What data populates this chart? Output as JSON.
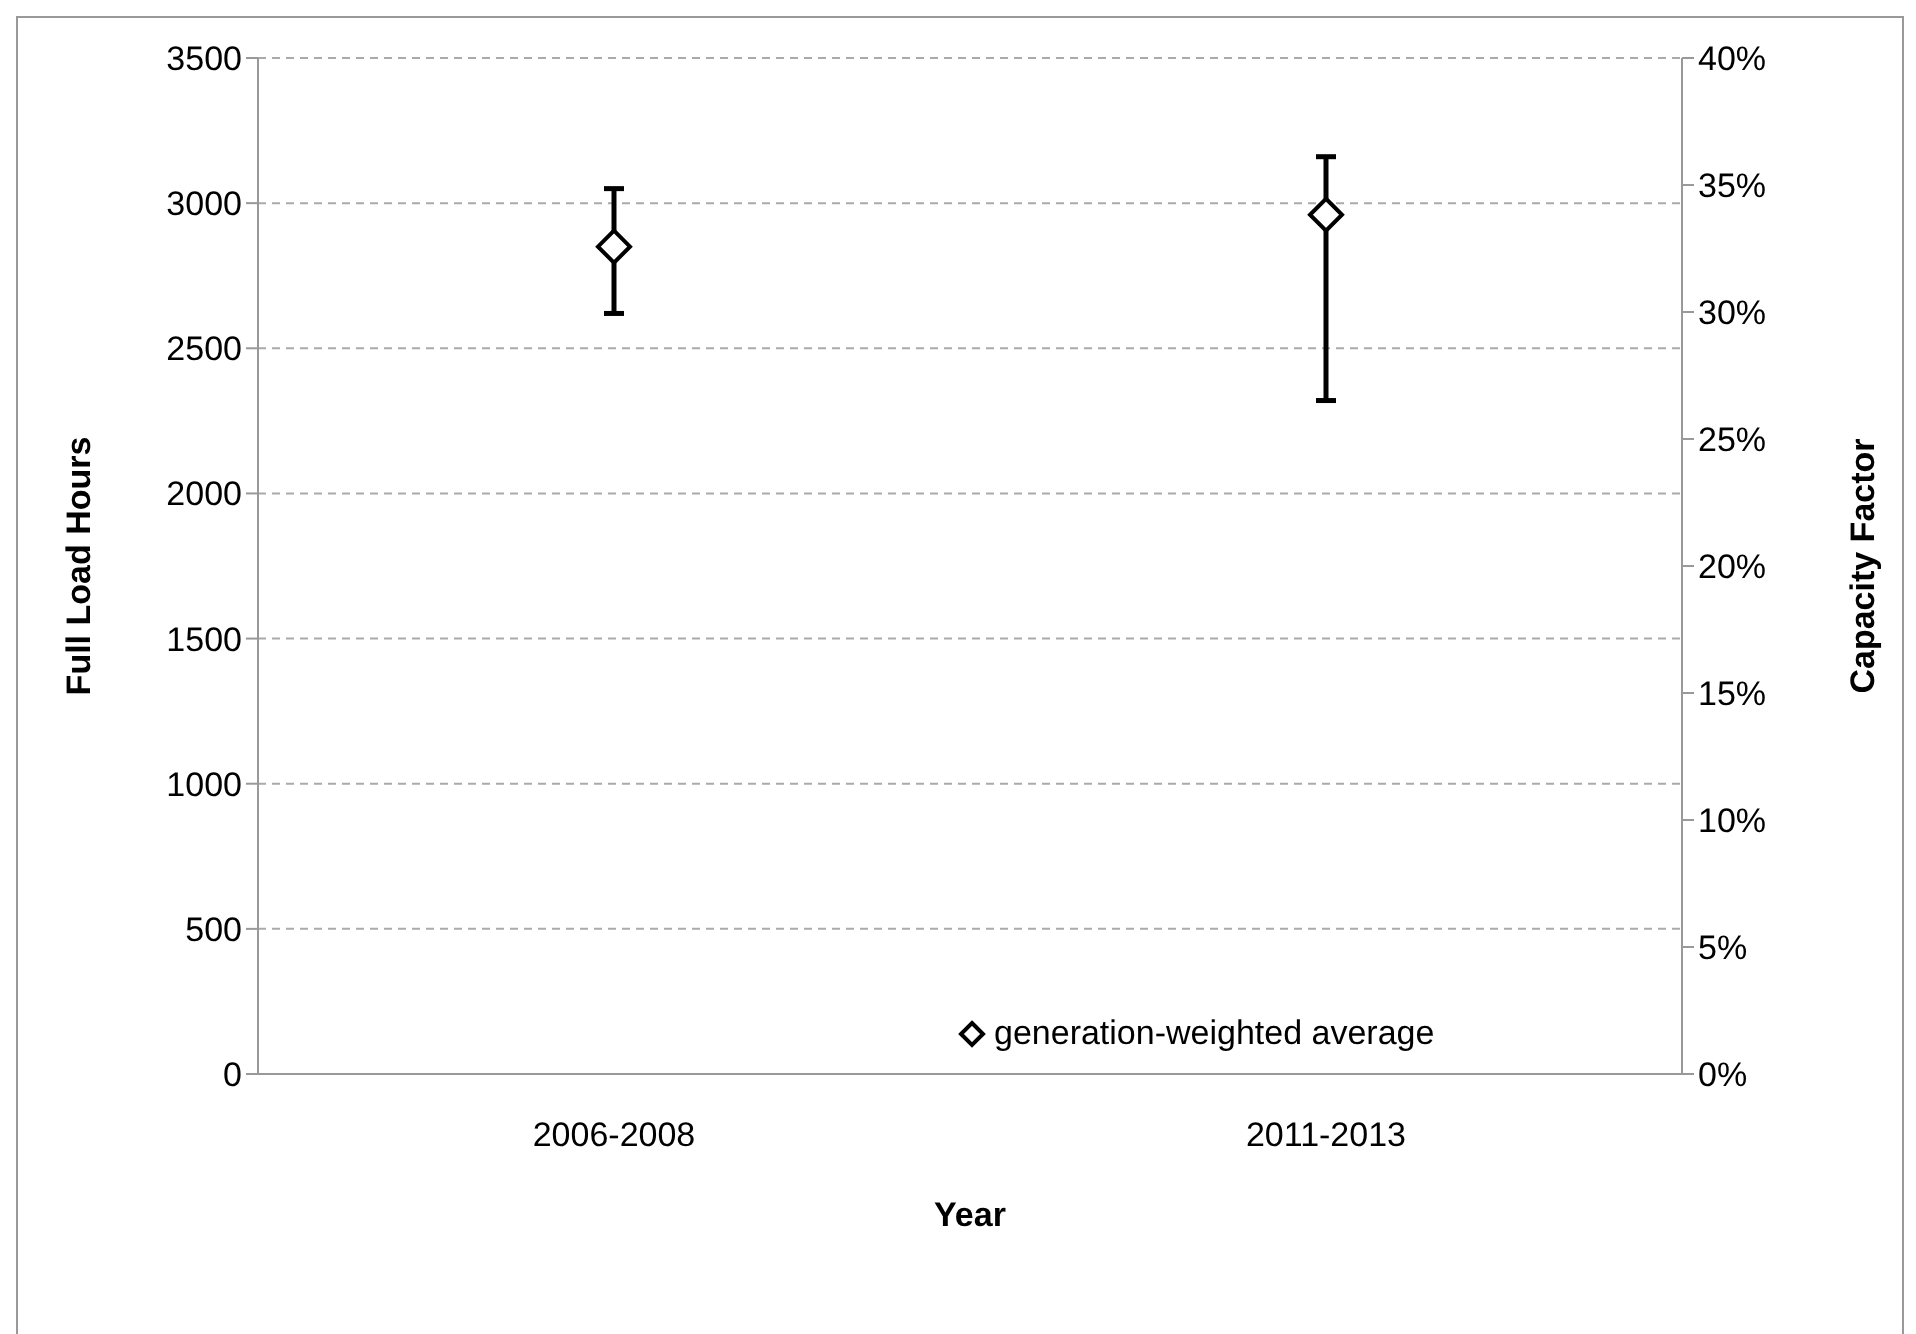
{
  "chart_data": {
    "type": "scatter",
    "xlabel": "Year",
    "ylabel": "Full Load Hours",
    "y2label": "Capacity Factor",
    "categories": [
      "2006-2008",
      "2011-2013"
    ],
    "series": [
      {
        "name": "generation-weighted average",
        "color": "#000000",
        "values": [
          2850,
          2960
        ],
        "errors": [
          [
            2620,
            3050
          ],
          [
            2320,
            3160
          ]
        ]
      }
    ],
    "ylim": [
      0,
      3500
    ],
    "yticks": [
      0,
      500,
      1000,
      1500,
      2000,
      2500,
      3000,
      3500
    ],
    "y2lim": [
      0,
      40
    ],
    "y2ticks": [
      {
        "value": 0,
        "label": "0%"
      },
      {
        "value": 5,
        "label": "5%"
      },
      {
        "value": 10,
        "label": "10%"
      },
      {
        "value": 15,
        "label": "15%"
      },
      {
        "value": 20,
        "label": "20%"
      },
      {
        "value": 25,
        "label": "25%"
      },
      {
        "value": 30,
        "label": "30%"
      },
      {
        "value": 35,
        "label": "35%"
      },
      {
        "value": 40,
        "label": "40%"
      }
    ],
    "grid": "y",
    "legend": "bottom right",
    "marker": "diamond"
  }
}
